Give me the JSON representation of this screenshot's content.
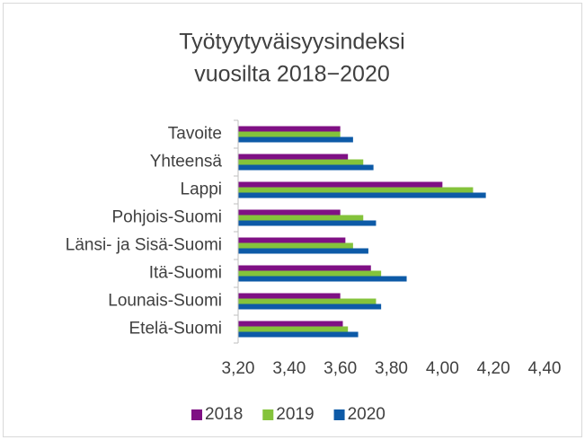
{
  "chart_data": {
    "type": "hbar",
    "title": [
      "Työtyytyväisyysindeksi",
      "vuosilta 2018−2020"
    ],
    "categories": [
      "Tavoite",
      "Yhteensä",
      "Lappi",
      "Pohjois-Suomi",
      "Länsi- ja Sisä-Suomi",
      "Itä-Suomi",
      "Lounais-Suomi",
      "Etelä-Suomi"
    ],
    "series": [
      {
        "name": "2018",
        "color": "#7f1084",
        "values": [
          3.6,
          3.63,
          4.0,
          3.6,
          3.62,
          3.72,
          3.6,
          3.61
        ]
      },
      {
        "name": "2019",
        "color": "#84c33b",
        "values": [
          3.6,
          3.69,
          4.12,
          3.69,
          3.65,
          3.76,
          3.74,
          3.63
        ]
      },
      {
        "name": "2020",
        "color": "#0d5aa7",
        "values": [
          3.65,
          3.73,
          4.17,
          3.74,
          3.71,
          3.86,
          3.76,
          3.67
        ]
      }
    ],
    "xlim": [
      3.2,
      4.4
    ],
    "xticks": [
      {
        "value": 3.2,
        "label": "3,20"
      },
      {
        "value": 3.4,
        "label": "3,40"
      },
      {
        "value": 3.6,
        "label": "3,60"
      },
      {
        "value": 3.8,
        "label": "3,80"
      },
      {
        "value": 4.0,
        "label": "4,00"
      },
      {
        "value": 4.2,
        "label": "4,20"
      },
      {
        "value": 4.4,
        "label": "4,40"
      }
    ],
    "grid": false,
    "legend": "bottom"
  }
}
